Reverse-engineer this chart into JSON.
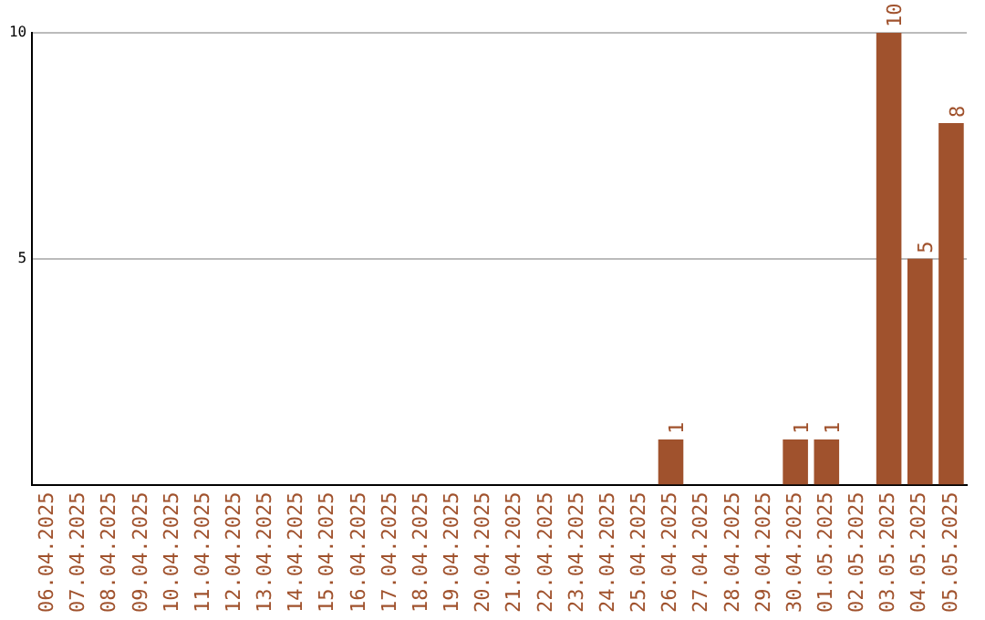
{
  "chart_data": {
    "type": "bar",
    "categories": [
      "06.04.2025",
      "07.04.2025",
      "08.04.2025",
      "09.04.2025",
      "10.04.2025",
      "11.04.2025",
      "12.04.2025",
      "13.04.2025",
      "14.04.2025",
      "15.04.2025",
      "16.04.2025",
      "17.04.2025",
      "18.04.2025",
      "19.04.2025",
      "20.04.2025",
      "21.04.2025",
      "22.04.2025",
      "23.04.2025",
      "24.04.2025",
      "25.04.2025",
      "26.04.2025",
      "27.04.2025",
      "28.04.2025",
      "29.04.2025",
      "30.04.2025",
      "01.05.2025",
      "02.05.2025",
      "03.05.2025",
      "04.05.2025",
      "05.05.2025"
    ],
    "values": [
      0,
      0,
      0,
      0,
      0,
      0,
      0,
      0,
      0,
      0,
      0,
      0,
      0,
      0,
      0,
      0,
      0,
      0,
      0,
      0,
      1,
      0,
      0,
      0,
      1,
      1,
      0,
      10,
      5,
      8
    ],
    "value_labels": [
      null,
      null,
      null,
      null,
      null,
      null,
      null,
      null,
      null,
      null,
      null,
      null,
      null,
      null,
      null,
      null,
      null,
      null,
      null,
      null,
      "1",
      null,
      null,
      null,
      "1",
      "1",
      null,
      "10",
      "5",
      "8"
    ],
    "color": "#a0522d",
    "ylim": [
      0,
      10
    ],
    "yticks": [
      5,
      10
    ],
    "grid": "y",
    "legend": false
  }
}
